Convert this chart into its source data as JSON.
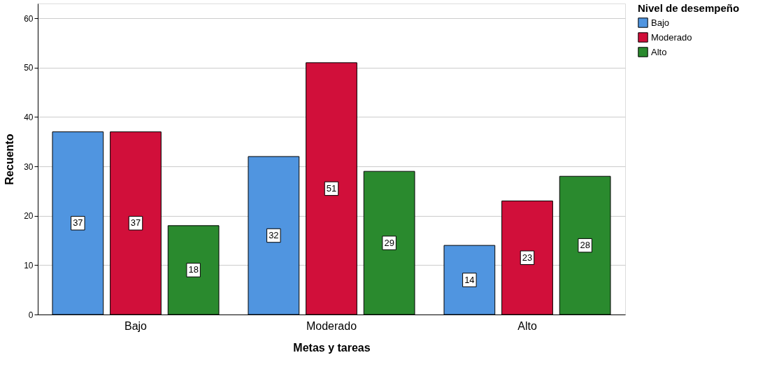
{
  "chart_data": {
    "type": "bar",
    "xlabel": "Metas y tareas",
    "ylabel": "Recuento",
    "legend_title": "Nivel de desempeño",
    "categories": [
      "Bajo",
      "Moderado",
      "Alto"
    ],
    "series": [
      {
        "name": "Bajo",
        "color": "#5095e0",
        "values": [
          37,
          32,
          14
        ]
      },
      {
        "name": "Moderado",
        "color": "#d10f3a",
        "values": [
          37,
          51,
          23
        ]
      },
      {
        "name": "Alto",
        "color": "#2a8a2e",
        "values": [
          18,
          29,
          28
        ]
      }
    ],
    "ylim": [
      0,
      63
    ],
    "yticks": [
      0,
      10,
      20,
      30,
      40,
      50,
      60
    ],
    "grid": "y",
    "legend": "top right",
    "data_labels": true
  }
}
